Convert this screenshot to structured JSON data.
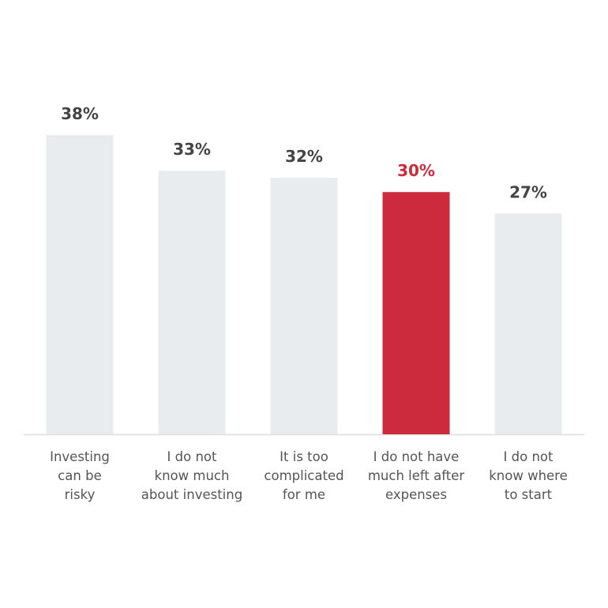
{
  "chart_data": {
    "type": "bar",
    "categories": [
      "Investing\ncan be\nrisky",
      "I do not\nknow much\nabout investing",
      "It is too\ncomplicated\nfor me",
      "I do not have\nmuch left after\nexpenses",
      "I do not\nknow where\nto start"
    ],
    "values": [
      38,
      33,
      32,
      30,
      27
    ],
    "value_labels": [
      "38%",
      "33%",
      "32%",
      "30%",
      "27%"
    ],
    "colors": [
      "#e9ecef",
      "#e9ecef",
      "#e9ecef",
      "#cc2b3e",
      "#e9ecef"
    ],
    "label_colors": [
      "#444444",
      "#444444",
      "#444444",
      "#cc2b3e",
      "#444444"
    ],
    "ylim": [
      -4,
      40
    ]
  }
}
